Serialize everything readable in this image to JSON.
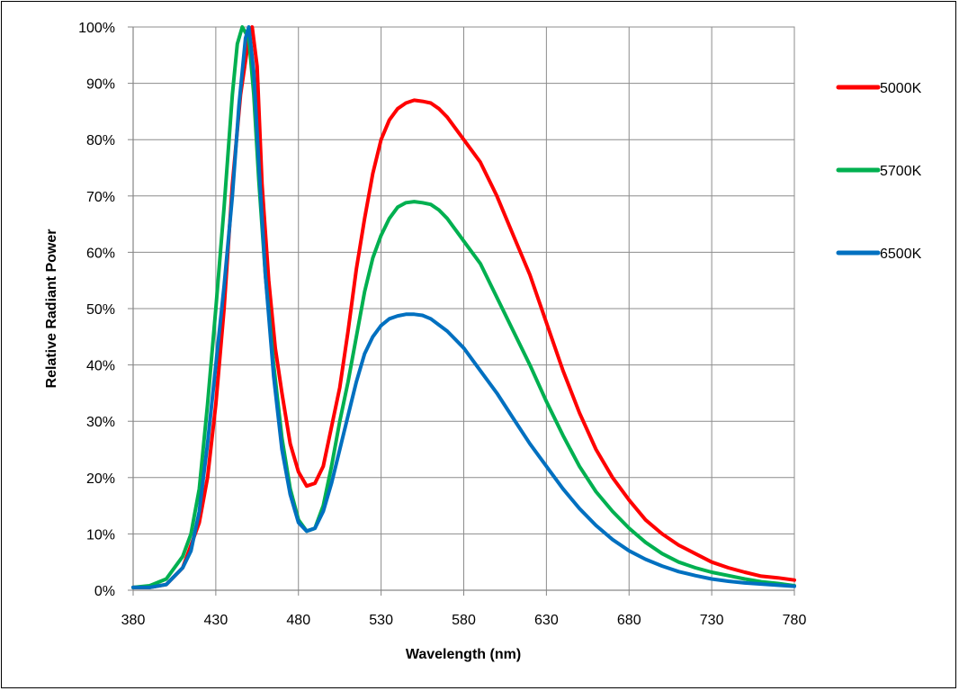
{
  "chart_data": {
    "type": "line",
    "xlabel": "Wavelength (nm)",
    "ylabel": "Relative Radiant Power",
    "xlim": [
      380,
      780
    ],
    "ylim": [
      0,
      100
    ],
    "x_ticks": [
      380,
      430,
      480,
      530,
      580,
      630,
      680,
      730,
      780
    ],
    "y_ticks": [
      0,
      10,
      20,
      30,
      40,
      50,
      60,
      70,
      80,
      90,
      100
    ],
    "x_tick_labels": [
      "380",
      "430",
      "480",
      "530",
      "580",
      "630",
      "680",
      "730",
      "780"
    ],
    "y_tick_labels": [
      "0%",
      "10%",
      "20%",
      "30%",
      "40%",
      "50%",
      "60%",
      "70%",
      "80%",
      "90%",
      "100%"
    ],
    "grid": true,
    "legend_position": "right",
    "series": [
      {
        "name": "5000K",
        "color": "#ff0000",
        "points": [
          [
            380,
            0.5
          ],
          [
            390,
            0.5
          ],
          [
            400,
            1
          ],
          [
            410,
            4
          ],
          [
            420,
            12
          ],
          [
            425,
            20
          ],
          [
            430,
            33
          ],
          [
            435,
            50
          ],
          [
            440,
            72
          ],
          [
            445,
            88
          ],
          [
            450,
            98
          ],
          [
            452,
            100
          ],
          [
            455,
            93
          ],
          [
            458,
            72
          ],
          [
            462,
            55
          ],
          [
            466,
            43
          ],
          [
            470,
            35
          ],
          [
            475,
            26
          ],
          [
            480,
            21
          ],
          [
            485,
            18.5
          ],
          [
            490,
            19
          ],
          [
            495,
            22
          ],
          [
            500,
            29
          ],
          [
            505,
            36
          ],
          [
            510,
            46
          ],
          [
            515,
            57
          ],
          [
            520,
            66
          ],
          [
            525,
            74
          ],
          [
            530,
            80
          ],
          [
            535,
            83.5
          ],
          [
            540,
            85.5
          ],
          [
            545,
            86.5
          ],
          [
            550,
            87
          ],
          [
            555,
            86.8
          ],
          [
            560,
            86.5
          ],
          [
            565,
            85.5
          ],
          [
            570,
            84
          ],
          [
            580,
            80
          ],
          [
            590,
            76
          ],
          [
            600,
            70
          ],
          [
            610,
            63
          ],
          [
            620,
            56
          ],
          [
            630,
            47.5
          ],
          [
            640,
            39
          ],
          [
            650,
            31.5
          ],
          [
            660,
            25
          ],
          [
            670,
            20
          ],
          [
            680,
            16
          ],
          [
            690,
            12.5
          ],
          [
            700,
            10
          ],
          [
            710,
            8
          ],
          [
            720,
            6.5
          ],
          [
            730,
            5
          ],
          [
            740,
            4
          ],
          [
            750,
            3.2
          ],
          [
            760,
            2.5
          ],
          [
            770,
            2.2
          ],
          [
            780,
            1.8
          ]
        ]
      },
      {
        "name": "5700K",
        "color": "#00b050",
        "points": [
          [
            380,
            0.5
          ],
          [
            390,
            0.8
          ],
          [
            400,
            2
          ],
          [
            410,
            6
          ],
          [
            415,
            10
          ],
          [
            420,
            18
          ],
          [
            425,
            33
          ],
          [
            430,
            50
          ],
          [
            435,
            68
          ],
          [
            440,
            88
          ],
          [
            443,
            97
          ],
          [
            446,
            100
          ],
          [
            450,
            98
          ],
          [
            453,
            88
          ],
          [
            456,
            73
          ],
          [
            460,
            56
          ],
          [
            465,
            40
          ],
          [
            470,
            27
          ],
          [
            475,
            18
          ],
          [
            480,
            12.5
          ],
          [
            485,
            10.5
          ],
          [
            490,
            11
          ],
          [
            495,
            15
          ],
          [
            500,
            22
          ],
          [
            505,
            30
          ],
          [
            510,
            37
          ],
          [
            515,
            45
          ],
          [
            520,
            53
          ],
          [
            525,
            59
          ],
          [
            530,
            63
          ],
          [
            535,
            66
          ],
          [
            540,
            68
          ],
          [
            545,
            68.8
          ],
          [
            550,
            69
          ],
          [
            555,
            68.8
          ],
          [
            560,
            68.5
          ],
          [
            565,
            67.5
          ],
          [
            570,
            66
          ],
          [
            580,
            62
          ],
          [
            590,
            58
          ],
          [
            600,
            52
          ],
          [
            610,
            46
          ],
          [
            620,
            40
          ],
          [
            630,
            33.5
          ],
          [
            640,
            27.5
          ],
          [
            650,
            22
          ],
          [
            660,
            17.5
          ],
          [
            670,
            14
          ],
          [
            680,
            11
          ],
          [
            690,
            8.5
          ],
          [
            700,
            6.5
          ],
          [
            710,
            5
          ],
          [
            720,
            4
          ],
          [
            730,
            3.2
          ],
          [
            740,
            2.6
          ],
          [
            750,
            2
          ],
          [
            760,
            1.5
          ],
          [
            770,
            1.2
          ],
          [
            780,
            0.8
          ]
        ]
      },
      {
        "name": "6500K",
        "color": "#0070c0",
        "points": [
          [
            380,
            0.5
          ],
          [
            390,
            0.5
          ],
          [
            400,
            1
          ],
          [
            410,
            4
          ],
          [
            415,
            7
          ],
          [
            420,
            14
          ],
          [
            425,
            26
          ],
          [
            430,
            40
          ],
          [
            435,
            54
          ],
          [
            440,
            70
          ],
          [
            444,
            86
          ],
          [
            448,
            98
          ],
          [
            450,
            100
          ],
          [
            453,
            92
          ],
          [
            456,
            76
          ],
          [
            460,
            56
          ],
          [
            465,
            38
          ],
          [
            470,
            25
          ],
          [
            475,
            17
          ],
          [
            480,
            12
          ],
          [
            485,
            10.5
          ],
          [
            490,
            11
          ],
          [
            495,
            14
          ],
          [
            500,
            19
          ],
          [
            505,
            25
          ],
          [
            510,
            31
          ],
          [
            515,
            37
          ],
          [
            520,
            42
          ],
          [
            525,
            45
          ],
          [
            530,
            47
          ],
          [
            535,
            48.2
          ],
          [
            540,
            48.7
          ],
          [
            545,
            49
          ],
          [
            550,
            49
          ],
          [
            555,
            48.8
          ],
          [
            560,
            48.2
          ],
          [
            570,
            46
          ],
          [
            580,
            43
          ],
          [
            590,
            39
          ],
          [
            600,
            35
          ],
          [
            610,
            30.5
          ],
          [
            620,
            26
          ],
          [
            630,
            22
          ],
          [
            640,
            18
          ],
          [
            650,
            14.5
          ],
          [
            660,
            11.5
          ],
          [
            670,
            9
          ],
          [
            680,
            7
          ],
          [
            690,
            5.5
          ],
          [
            700,
            4.3
          ],
          [
            710,
            3.3
          ],
          [
            720,
            2.6
          ],
          [
            730,
            2
          ],
          [
            740,
            1.6
          ],
          [
            750,
            1.3
          ],
          [
            760,
            1.1
          ],
          [
            770,
            0.9
          ],
          [
            780,
            0.7
          ]
        ]
      }
    ]
  }
}
